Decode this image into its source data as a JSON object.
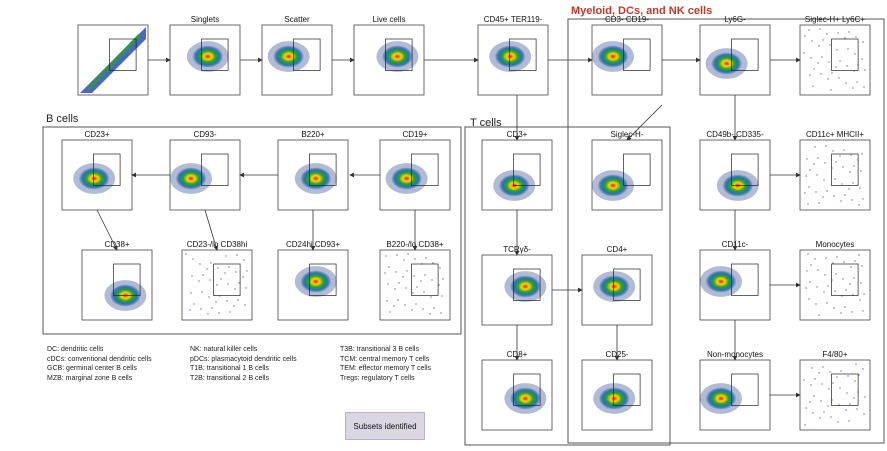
{
  "sections": {
    "myeloid": "Myeloid, DCs, and NK cells",
    "bcells": "B cells",
    "tcells": "T cells"
  },
  "panels": [
    {
      "id": "p-fsc",
      "title": ""
    },
    {
      "id": "p-singlets",
      "title": "Singlets"
    },
    {
      "id": "p-scatter",
      "title": "Scatter"
    },
    {
      "id": "p-live",
      "title": "Live cells"
    },
    {
      "id": "p-cd45",
      "title": "CD45+ TER119-"
    },
    {
      "id": "p-cd3cd19",
      "title": "CD3- CD19-"
    },
    {
      "id": "p-ly6g",
      "title": "Ly6G-"
    },
    {
      "id": "p-siglec-ly6c",
      "title": "Siglec-H+ Ly6C+"
    },
    {
      "id": "p-cd23",
      "title": "CD23+"
    },
    {
      "id": "p-cd93",
      "title": "CD93-"
    },
    {
      "id": "p-b220",
      "title": "B220+"
    },
    {
      "id": "p-cd19",
      "title": "CD19+"
    },
    {
      "id": "p-cd3",
      "title": "CD3+"
    },
    {
      "id": "p-siglech",
      "title": "Siglec-H-"
    },
    {
      "id": "p-cd49b",
      "title": "CD49b- CD335-"
    },
    {
      "id": "p-cd11c-mhc",
      "title": "CD11c+ MHCII+"
    },
    {
      "id": "p-cd38",
      "title": "CD38+"
    },
    {
      "id": "p-cd23lo",
      "title": "CD23-/lo CD38hi"
    },
    {
      "id": "p-cd24",
      "title": "CD24hi CD93+"
    },
    {
      "id": "p-b220lo",
      "title": "B220-/lo CD38+"
    },
    {
      "id": "p-tcrgd",
      "title": "TCRγδ-"
    },
    {
      "id": "p-cd4",
      "title": "CD4+"
    },
    {
      "id": "p-cd11c-neg",
      "title": "CD11c-"
    },
    {
      "id": "p-monocytes",
      "title": "Monocytes"
    },
    {
      "id": "p-cd8",
      "title": "CD8+"
    },
    {
      "id": "p-cd25",
      "title": "CD25-"
    },
    {
      "id": "p-nonmono",
      "title": "Non-monocytes"
    },
    {
      "id": "p-f480",
      "title": "F4/80+"
    }
  ],
  "legend": {
    "col1": [
      "DC: dendritic cells",
      "cDCs: conventional dendritic cells",
      "GCB: germinal center B cells",
      "MZB: marginal zone B cells"
    ],
    "col2": [
      "NK: natural killer cells",
      "pDCs: plasmacytoid dendritic cells",
      "T1B: transitional 1 B cells",
      "T2B: transitional 2 B cells"
    ],
    "col3": [
      "T3B: transitional 3 B cells",
      "TCM: central memory T cells",
      "TEM: effector memory T cells",
      "Tregs: regulatory T cells"
    ]
  },
  "button": {
    "label": "Subsets identified"
  },
  "colors": {
    "section_title": "#c0392b",
    "button_bg": "#dcd6e3"
  }
}
